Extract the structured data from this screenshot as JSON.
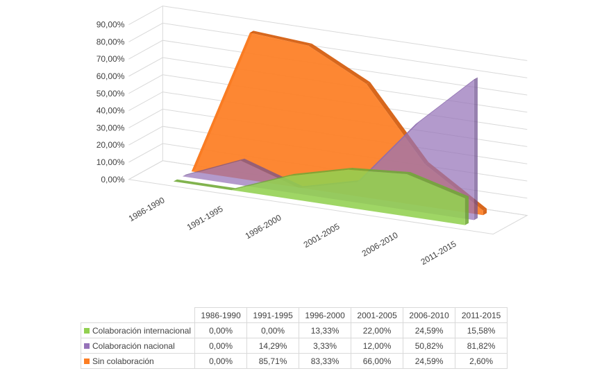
{
  "chart_data": {
    "type": "area",
    "categories": [
      "1986-1990",
      "1991-1995",
      "1996-2000",
      "2001-2005",
      "2006-2010",
      "2011-2015"
    ],
    "ylim": [
      0,
      90
    ],
    "ytick_labels": [
      "0,00%",
      "10,00%",
      "20,00%",
      "30,00%",
      "40,00%",
      "50,00%",
      "60,00%",
      "70,00%",
      "80,00%",
      "90,00%"
    ],
    "grid": true,
    "legend": "data-table",
    "series": [
      {
        "name": "Colaboración internacional",
        "color": "#92d050",
        "values": [
          0.0,
          0.0,
          13.33,
          22.0,
          24.59,
          15.58
        ],
        "labels": [
          "0,00%",
          "0,00%",
          "13,33%",
          "22,00%",
          "24,59%",
          "15,58%"
        ]
      },
      {
        "name": "Colaboración nacional",
        "color": "#9673b9",
        "values": [
          0.0,
          14.29,
          3.33,
          12.0,
          50.82,
          81.82
        ],
        "labels": [
          "0,00%",
          "14,29%",
          "3,33%",
          "12,00%",
          "50,82%",
          "81,82%"
        ]
      },
      {
        "name": "Sin colaboración",
        "color": "#fd7e23",
        "values": [
          0.0,
          85.71,
          83.33,
          66.0,
          24.59,
          2.6
        ],
        "labels": [
          "0,00%",
          "85,71%",
          "83,33%",
          "66,00%",
          "24,59%",
          "2,60%"
        ]
      }
    ]
  }
}
